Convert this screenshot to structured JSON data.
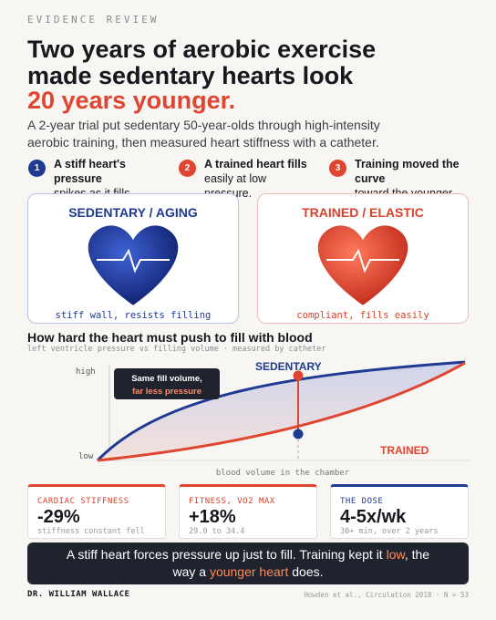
{
  "header": {
    "eyebrow": "EVIDENCE REVIEW",
    "title_lines": [
      "Two years of aerobic exercise",
      "made sedentary hearts look"
    ],
    "title_highlight": "20 years younger.",
    "subtitle": "A 2-year trial put sedentary 50-year-olds through high-intensity aerobic training, then measured heart stiffness with a catheter."
  },
  "steps": [
    {
      "number": "1",
      "bold": "A stiff heart's pressure",
      "text": "spikes as it fills."
    },
    {
      "number": "2",
      "bold": "A trained heart fills",
      "text": "easily at low pressure."
    },
    {
      "number": "3",
      "bold": "Training moved the curve",
      "text": "toward the younger one."
    }
  ],
  "cards": [
    {
      "title": "SEDENTARY / AGING",
      "caption": "stiff wall, resists filling"
    },
    {
      "title": "TRAINED / ELASTIC",
      "caption": "compliant, fills easily"
    }
  ],
  "figure": {
    "title": "How hard the heart must push to fill with blood",
    "subtitle": "left ventricle pressure vs filling volume · measured by catheter",
    "y_high": "high",
    "y_low": "low",
    "x_label": "blood volume in the chamber",
    "callout_line1": "Same fill volume,",
    "callout_line2": "far less pressure",
    "series_labels": [
      "SEDENTARY",
      "TRAINED"
    ]
  },
  "stats": [
    {
      "label": "CARDIAC STIFFNESS",
      "value": "-29%",
      "caption": "stiffness constant fell"
    },
    {
      "label": "FITNESS, VO2 MAX",
      "value": "+18%",
      "caption": "29.0 to 34.4"
    },
    {
      "label": "THE DOSE",
      "value": "4-5x/wk",
      "caption": "30+ min, over 2 years"
    }
  ],
  "banner": [
    {
      "text": "A stiff heart forces pressure up just to fill. Training kept it "
    },
    {
      "text": "low",
      "highlight": true
    },
    {
      "text": ", the way a "
    },
    {
      "text": "younger heart",
      "highlight": true
    },
    {
      "text": " does."
    }
  ],
  "footer": {
    "author": "DR. WILLIAM WALLACE",
    "source": "Howden et al., Circulation 2018 · N = 53"
  }
}
